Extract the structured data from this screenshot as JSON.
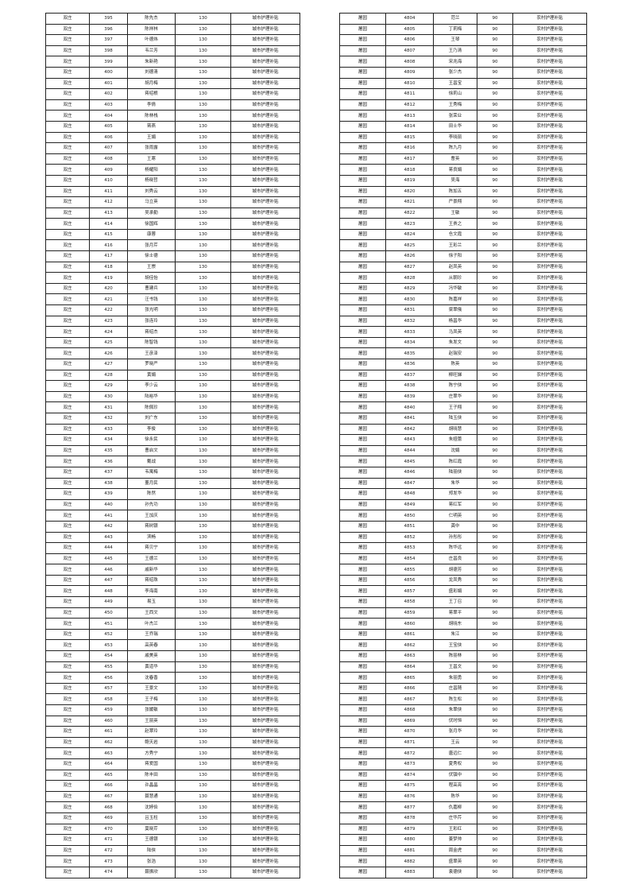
{
  "left_table": {
    "region": "双庄",
    "amount": "130",
    "type": "城市护理补贴",
    "rows": [
      [
        "395",
        "陈先杰"
      ],
      [
        "396",
        "陈祥林"
      ],
      [
        "397",
        "叶德炜"
      ],
      [
        "398",
        "韦兰芳"
      ],
      [
        "399",
        "朱新艳"
      ],
      [
        "400",
        "刘德清"
      ],
      [
        "401",
        "胡月梅"
      ],
      [
        "402",
        "蒋绍根"
      ],
      [
        "403",
        "李倩"
      ],
      [
        "404",
        "陈林栈"
      ],
      [
        "405",
        "蒋燕"
      ],
      [
        "406",
        "王娟"
      ],
      [
        "407",
        "张雨露"
      ],
      [
        "408",
        "王寒"
      ],
      [
        "409",
        "杨耀阳"
      ],
      [
        "410",
        "杨晓哲"
      ],
      [
        "411",
        "刘秀云"
      ],
      [
        "412",
        "马立英"
      ],
      [
        "413",
        "吴承勤"
      ],
      [
        "414",
        "徐国辉"
      ],
      [
        "415",
        "康蓉"
      ],
      [
        "416",
        "张月芹"
      ],
      [
        "417",
        "徐士德"
      ],
      [
        "418",
        "王崇"
      ],
      [
        "419",
        "胡佳怡"
      ],
      [
        "420",
        "曹建兵"
      ],
      [
        "421",
        "汪书钱"
      ],
      [
        "422",
        "张光明"
      ],
      [
        "423",
        "张连玲"
      ],
      [
        "424",
        "蒋绍杰"
      ],
      [
        "425",
        "陈智钱"
      ],
      [
        "426",
        "王彦泽"
      ],
      [
        "427",
        "罗晓严"
      ],
      [
        "428",
        "黄娟"
      ],
      [
        "429",
        "李少云"
      ],
      [
        "430",
        "陆裕华"
      ],
      [
        "431",
        "陈佩珍"
      ],
      [
        "432",
        "刘广东"
      ],
      [
        "433",
        "李俊"
      ],
      [
        "434",
        "徐永民"
      ],
      [
        "435",
        "曹启文"
      ],
      [
        "436",
        "戴战"
      ],
      [
        "437",
        "韦寓梅"
      ],
      [
        "438",
        "董月民"
      ],
      [
        "439",
        "陈然"
      ],
      [
        "440",
        "孙先功"
      ],
      [
        "441",
        "王加庆"
      ],
      [
        "442",
        "蒋树银"
      ],
      [
        "443",
        "滨畅"
      ],
      [
        "444",
        "蒋贝宁"
      ],
      [
        "445",
        "王德兰"
      ],
      [
        "446",
        "戚新华"
      ],
      [
        "447",
        "蒋绍珠"
      ],
      [
        "448",
        "李海南"
      ],
      [
        "449",
        "易玉"
      ],
      [
        "450",
        "王西文"
      ],
      [
        "451",
        "叶杰兰"
      ],
      [
        "452",
        "王乔瑞"
      ],
      [
        "453",
        "高英春"
      ],
      [
        "454",
        "戚美英"
      ],
      [
        "455",
        "黄道华"
      ],
      [
        "456",
        "沈春香"
      ],
      [
        "457",
        "王景文"
      ],
      [
        "458",
        "王子梅"
      ],
      [
        "459",
        "张媛敏"
      ],
      [
        "460",
        "王丽英"
      ],
      [
        "461",
        "赵翠玲"
      ],
      [
        "462",
        "鲍天岩"
      ],
      [
        "463",
        "方秀宁"
      ],
      [
        "464",
        "蒋爱国"
      ],
      [
        "465",
        "陈丰田"
      ],
      [
        "466",
        "许晶晶"
      ],
      [
        "467",
        "聂慧通"
      ],
      [
        "468",
        "沈婷俭"
      ],
      [
        "469",
        "吕玉柱"
      ],
      [
        "470",
        "莫晓芹"
      ],
      [
        "471",
        "王德银"
      ],
      [
        "472",
        "陆侠"
      ],
      [
        "473",
        "张浩"
      ],
      [
        "474",
        "聂振欣"
      ]
    ]
  },
  "right_table": {
    "region": "屠园",
    "amount": "90",
    "type": "农村护理补贴",
    "rows": [
      [
        "4804",
        "范兰"
      ],
      [
        "4805",
        "丁莉梅"
      ],
      [
        "4806",
        "王琴"
      ],
      [
        "4807",
        "王乃清"
      ],
      [
        "4808",
        "宋兆海"
      ],
      [
        "4809",
        "张少杰"
      ],
      [
        "4810",
        "王昌宝"
      ],
      [
        "4811",
        "徐莉山"
      ],
      [
        "4812",
        "王秀梅"
      ],
      [
        "4813",
        "张荣业"
      ],
      [
        "4814",
        "田士华"
      ],
      [
        "4815",
        "李晓丽"
      ],
      [
        "4816",
        "陈九月"
      ],
      [
        "4817",
        "曹英"
      ],
      [
        "4818",
        "蒋良娟"
      ],
      [
        "4819",
        "吴海"
      ],
      [
        "4820",
        "陈加五"
      ],
      [
        "4821",
        "严景翔"
      ],
      [
        "4822",
        "王敏"
      ],
      [
        "4823",
        "王贵之"
      ],
      [
        "4824",
        "仓文霞"
      ],
      [
        "4825",
        "王彩兰"
      ],
      [
        "4826",
        "徐子阳"
      ],
      [
        "4827",
        "赵凤英"
      ],
      [
        "4828",
        "从朝珍"
      ],
      [
        "4829",
        "冯华敏"
      ],
      [
        "4830",
        "陈嘉祥"
      ],
      [
        "4831",
        "梁翠俄"
      ],
      [
        "4832",
        "杨昌华"
      ],
      [
        "4833",
        "马凤英"
      ],
      [
        "4834",
        "朱发文"
      ],
      [
        "4835",
        "赵瑞安"
      ],
      [
        "4836",
        "陈英"
      ],
      [
        "4837",
        "柳旺娣"
      ],
      [
        "4838",
        "陈宁侠"
      ],
      [
        "4839",
        "庄翠华"
      ],
      [
        "4840",
        "王子翔"
      ],
      [
        "4841",
        "陆玉侠"
      ],
      [
        "4842",
        "胡晓慧"
      ],
      [
        "4843",
        "朱娅蕾"
      ],
      [
        "4844",
        "沈娟"
      ],
      [
        "4845",
        "陈红霞"
      ],
      [
        "4846",
        "陆丽侠"
      ],
      [
        "4847",
        "朱华"
      ],
      [
        "4848",
        "郑发华"
      ],
      [
        "4849",
        "蒋红军"
      ],
      [
        "4850",
        "仁明英"
      ],
      [
        "4851",
        "龚中"
      ],
      [
        "4852",
        "孙彤彤"
      ],
      [
        "4853",
        "陈华远"
      ],
      [
        "4854",
        "庄昌良"
      ],
      [
        "4855",
        "胡德芳"
      ],
      [
        "4856",
        "龙凤秀"
      ],
      [
        "4857",
        "盛彩娟"
      ],
      [
        "4858",
        "王丁召"
      ],
      [
        "4859",
        "蒋翠平"
      ],
      [
        "4860",
        "胡晓东"
      ],
      [
        "4861",
        "朱江"
      ],
      [
        "4862",
        "王宝侠"
      ],
      [
        "4863",
        "陈丽林"
      ],
      [
        "4864",
        "王昌文"
      ],
      [
        "4865",
        "朱丽勇"
      ],
      [
        "4866",
        "庄昌随"
      ],
      [
        "4867",
        "陈生松"
      ],
      [
        "4868",
        "朱翠侠"
      ],
      [
        "4869",
        "伏时恒"
      ],
      [
        "4870",
        "张月华"
      ],
      [
        "4871",
        "王云"
      ],
      [
        "4872",
        "唐远仁"
      ],
      [
        "4873",
        "夏秀权"
      ],
      [
        "4874",
        "伏镇中"
      ],
      [
        "4875",
        "程高亮"
      ],
      [
        "4876",
        "陈华"
      ],
      [
        "4877",
        "仇嘉柳"
      ],
      [
        "4878",
        "庄华芹"
      ],
      [
        "4879",
        "王彩红"
      ],
      [
        "4880",
        "姜梦帅"
      ],
      [
        "4881",
        "周金虎"
      ],
      [
        "4882",
        "盛翠英"
      ],
      [
        "4883",
        "袁德侠"
      ]
    ]
  }
}
